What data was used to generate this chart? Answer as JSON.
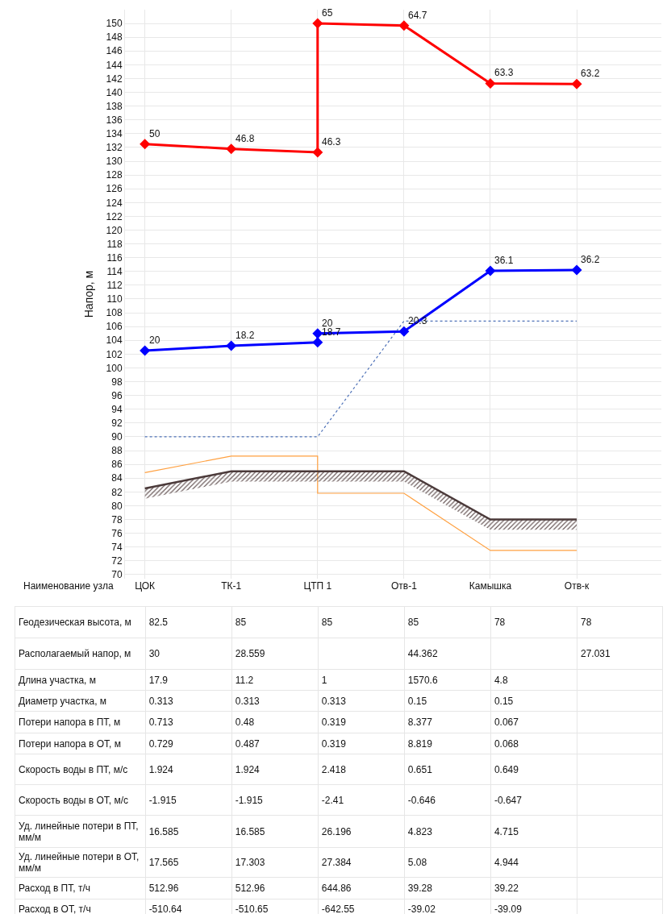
{
  "chart_data": [
    {
      "type": "line",
      "ylabel": "Напор, м",
      "xlabel": "Наименование узла",
      "categories": [
        "ЦОК",
        "ТК-1",
        "ЦТП 1",
        "Отв-1",
        "Камышка",
        "Отв-к"
      ],
      "ylim": [
        69.4,
        152
      ],
      "yticks": [
        70,
        72,
        74,
        76,
        78,
        80,
        82,
        84,
        86,
        88,
        90,
        92,
        94,
        96,
        98,
        100,
        102,
        104,
        106,
        108,
        110,
        112,
        114,
        116,
        118,
        120,
        122,
        124,
        126,
        128,
        130,
        132,
        134,
        136,
        138,
        140,
        142,
        144,
        146,
        148,
        150
      ],
      "grid": true,
      "series": [
        {
          "color": "#ff0000",
          "marker": "diamond",
          "line_style": "solid",
          "x": [
            "ЦОК",
            "ТК-1",
            "ЦТП 1",
            "ЦТП 1",
            "Отв-1",
            "Камышка",
            "Отв-к"
          ],
          "values": [
            132.5,
            131.8,
            131.3,
            150,
            149.7,
            141.3,
            141.2
          ]
        },
        {
          "color": "#0000ff",
          "marker": "diamond",
          "line_style": "solid",
          "x": [
            "ЦОК",
            "ТК-1",
            "ЦТП 1",
            "ЦТП 1",
            "Отв-1",
            "Камышка",
            "Отв-к"
          ],
          "values": [
            102.5,
            103.2,
            103.7,
            105,
            105.3,
            114.1,
            114.2
          ]
        },
        {
          "color": "#4f72b8",
          "marker": "none",
          "line_style": "dotted",
          "x": [
            "ЦОК",
            "ТК-1",
            "ЦТП 1",
            "Отв-1",
            "Камышка",
            "Отв-к"
          ],
          "values": [
            90,
            90,
            90,
            106.8,
            106.8,
            106.8
          ]
        },
        {
          "color": "#ffa040",
          "marker": "none",
          "line_style": "solid",
          "x": [
            "ЦОК",
            "ТК-1",
            "ЦТП 1",
            "ЦТП 1",
            "Отв-1",
            "Камышка",
            "Отв-к"
          ],
          "values": [
            84.8,
            87.2,
            87.2,
            81.8,
            81.8,
            73.5,
            73.5
          ]
        },
        {
          "color": "#4b3a3a",
          "marker": "none",
          "line_style": "solid",
          "x": [
            "ЦОК",
            "ТК-1",
            "ЦТП 1",
            "Отв-1",
            "Камышка",
            "Отв-к"
          ],
          "values": [
            82.5,
            85,
            85,
            85,
            78,
            78
          ],
          "lower": [
            81,
            83.5,
            83.5,
            83.5,
            76.5,
            76.5
          ],
          "upper": [
            82.5,
            85,
            85,
            85,
            78,
            78
          ]
        }
      ],
      "annotations": [
        {
          "text": "50",
          "x": "ЦОК",
          "y": 132.5
        },
        {
          "text": "46.8",
          "x": "ТК-1",
          "y": 131.8
        },
        {
          "text": "46.3",
          "x": "ЦТП 1",
          "y": 131.3
        },
        {
          "text": "65",
          "x": "ЦТП 1",
          "y": 150
        },
        {
          "text": "64.7",
          "x": "Отв-1",
          "y": 149.7
        },
        {
          "text": "63.3",
          "x": "Камышка",
          "y": 141.3
        },
        {
          "text": "63.2",
          "x": "Отв-к",
          "y": 141.2
        },
        {
          "text": "20",
          "x": "ЦОК",
          "y": 102.5
        },
        {
          "text": "18.2",
          "x": "ТК-1",
          "y": 103.2
        },
        {
          "text": "18.7",
          "x": "ЦТП 1",
          "y": 103.7
        },
        {
          "text": "20",
          "x": "ЦТП 1",
          "y": 105
        },
        {
          "text": "20.3",
          "x": "Отв-1",
          "y": 105.3
        },
        {
          "text": "36.1",
          "x": "Камышка",
          "y": 114.1
        },
        {
          "text": "36.2",
          "x": "Отв-к",
          "y": 114.2
        }
      ]
    },
    {
      "type": "other",
      "y_categories": [
        "Геодезическая высота, м",
        "Располагаемый напор, м",
        "Длина участка, м",
        "Диаметр участка, м",
        "Потери напора в ПТ, м",
        "Потери напора в ОТ, м",
        "Скорость воды в ПТ, м/с",
        "Скорость воды в ОТ, м/с",
        "Уд. линейные потери в ПТ, мм/м",
        "Уд. линейные потери в ОТ, мм/м",
        "Расход в ПТ, т/ч",
        "Расход в ОТ, т/ч"
      ],
      "cells": [
        [
          "82.5",
          "85",
          "85",
          "85",
          "78",
          "78"
        ],
        [
          "30",
          "28.559",
          null,
          "44.362",
          null,
          "27.031"
        ],
        [
          "17.9",
          "11.2",
          "1",
          "1570.6",
          "4.8",
          null
        ],
        [
          "0.313",
          "0.313",
          "0.313",
          "0.15",
          "0.15",
          null
        ],
        [
          "0.713",
          "0.48",
          "0.319",
          "8.377",
          "0.067",
          null
        ],
        [
          "0.729",
          "0.487",
          "0.319",
          "8.819",
          "0.068",
          null
        ],
        [
          "1.924",
          "1.924",
          "2.418",
          "0.651",
          "0.649",
          null
        ],
        [
          "-1.915",
          "-1.915",
          "-2.41",
          "-0.646",
          "-0.647",
          null
        ],
        [
          "16.585",
          "16.585",
          "26.196",
          "4.823",
          "4.715",
          null
        ],
        [
          "17.565",
          "17.303",
          "27.384",
          "5.08",
          "4.944",
          null
        ],
        [
          "512.96",
          "512.96",
          "644.86",
          "39.28",
          "39.22",
          null
        ],
        [
          "-510.64",
          "-510.65",
          "-642.55",
          "-39.02",
          "-39.09",
          null
        ]
      ]
    }
  ]
}
